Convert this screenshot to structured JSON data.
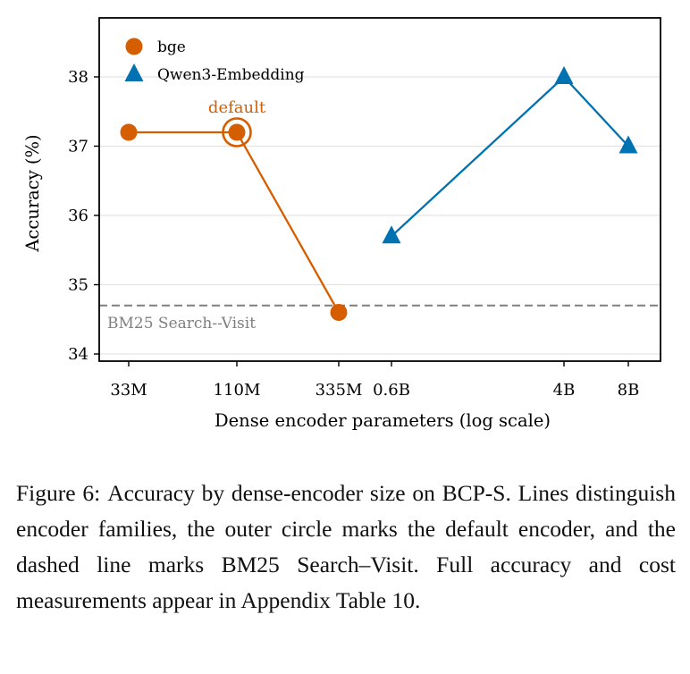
{
  "chart_data": {
    "type": "line",
    "xlabel": "Dense encoder parameters (log scale)",
    "ylabel": "Accuracy (%)",
    "x_scale": "log",
    "ylim": [
      33.9,
      38.8
    ],
    "yticks": [
      34,
      35,
      36,
      37,
      38
    ],
    "xticks": [
      {
        "value": 33000000,
        "label": "33M"
      },
      {
        "value": 110000000,
        "label": "110M"
      },
      {
        "value": 335000000,
        "label": "335M"
      },
      {
        "value": 600000000,
        "label": "0.6B"
      },
      {
        "value": 4000000000,
        "label": "4B"
      },
      {
        "value": 8000000000,
        "label": "8B"
      }
    ],
    "grid": "horizontal",
    "legend_position": "top-left",
    "series": [
      {
        "name": "bge",
        "marker": "circle",
        "color": "#d55e00",
        "x": [
          33000000,
          110000000,
          335000000
        ],
        "y": [
          37.2,
          37.2,
          34.6
        ]
      },
      {
        "name": "Qwen3-Embedding",
        "marker": "triangle",
        "color": "#0072b2",
        "x": [
          600000000,
          4000000000,
          8000000000
        ],
        "y": [
          35.7,
          38.0,
          37.0
        ]
      }
    ],
    "reference_line": {
      "y": 34.7,
      "label": "BM25 Search--Visit",
      "color": "#7f7f7f",
      "style": "dashed"
    },
    "highlight": {
      "series": "bge",
      "x": 110000000,
      "y": 37.2,
      "label": "default"
    }
  },
  "caption": {
    "label": "Figure 6:",
    "text": "Accuracy by dense-encoder size on BCP-S. Lines distinguish encoder families, the outer circle marks the default encoder, and the dashed line marks BM25 Search–Visit. Full accuracy and cost measurements ap­pear in Appendix Table 10."
  }
}
